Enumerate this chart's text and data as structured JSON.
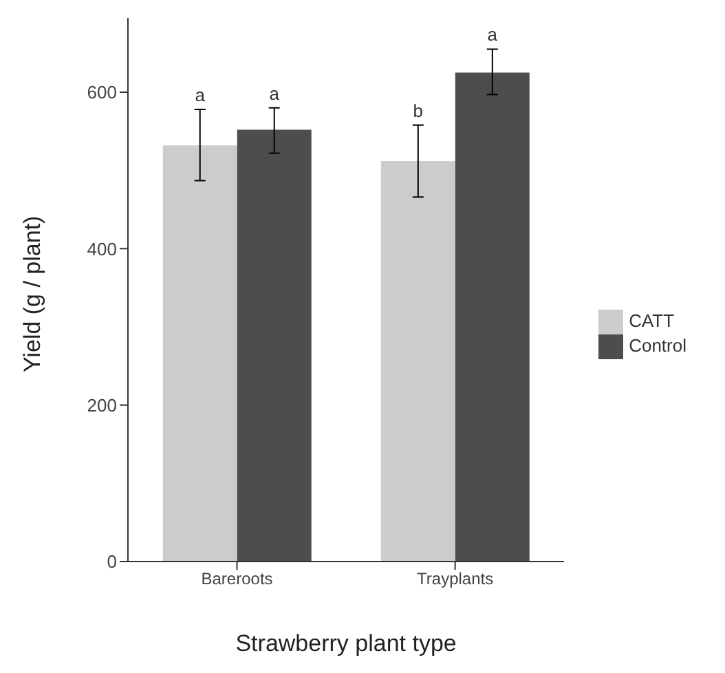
{
  "chart_data": {
    "type": "bar",
    "xlabel": "Strawberry plant type",
    "ylabel": "Yield (g / plant)",
    "categories": [
      "Bareroots",
      "Trayplants"
    ],
    "series": [
      {
        "name": "CATT",
        "color": "#cccccc",
        "values": [
          532,
          512
        ],
        "errors": [
          [
            487,
            578
          ],
          [
            466,
            558
          ]
        ]
      },
      {
        "name": "Control",
        "color": "#4d4d4d",
        "values": [
          552,
          625
        ],
        "errors": [
          [
            522,
            580
          ],
          [
            597,
            655
          ]
        ]
      }
    ],
    "ylim": [
      0,
      695
    ],
    "yticks": [
      0,
      200,
      400,
      600
    ],
    "grid": false,
    "legend": "right",
    "annotations": [
      "a",
      "a",
      "b",
      "a"
    ]
  }
}
